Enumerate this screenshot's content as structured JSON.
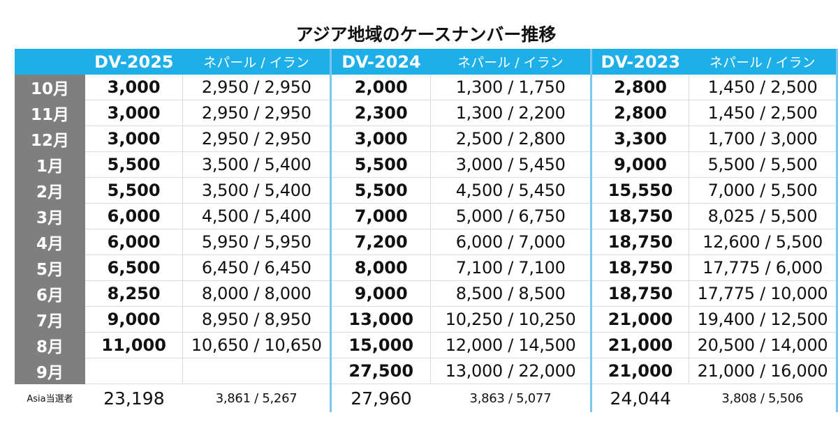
{
  "title": "アジア地域のケースナンバー推移",
  "headers": {
    "years": [
      "DV-2025",
      "DV-2024",
      "DV-2023"
    ],
    "sub": "ネパール / イラン"
  },
  "rows": [
    {
      "month": "10月",
      "v": [
        "3,000",
        "2,950 / 2,950",
        "2,000",
        "1,300 / 1,750",
        "2,800",
        "1,450 / 2,500"
      ]
    },
    {
      "month": "11月",
      "v": [
        "3,000",
        "2,950 / 2,950",
        "2,300",
        "1,300 / 2,200",
        "2,800",
        "1,450 / 2,500"
      ]
    },
    {
      "month": "12月",
      "v": [
        "3,000",
        "2,950 / 2,950",
        "3,000",
        "2,500 / 2,800",
        "3,300",
        "1,700 / 3,000"
      ]
    },
    {
      "month": "1月",
      "v": [
        "5,500",
        "3,500 / 5,400",
        "5,500",
        "3,000 / 5,450",
        "9,000",
        "5,500 / 5,500"
      ]
    },
    {
      "month": "2月",
      "v": [
        "5,500",
        "3,500 / 5,400",
        "5,500",
        "4,500 / 5,450",
        "15,550",
        "7,000 / 5,500"
      ]
    },
    {
      "month": "3月",
      "v": [
        "6,000",
        "4,500 / 5,400",
        "7,000",
        "5,000 / 6,750",
        "18,750",
        "8,025 / 5,500"
      ]
    },
    {
      "month": "4月",
      "v": [
        "6,000",
        "5,950 / 5,950",
        "7,200",
        "6,000 / 7,000",
        "18,750",
        "12,600 / 5,500"
      ]
    },
    {
      "month": "5月",
      "v": [
        "6,500",
        "6,450 / 6,450",
        "8,000",
        "7,100 / 7,100",
        "18,750",
        "17,775 / 6,000"
      ]
    },
    {
      "month": "6月",
      "v": [
        "8,250",
        "8,000 / 8,000",
        "9,000",
        "8,500 / 8,500",
        "18,750",
        "17,775 / 10,000"
      ]
    },
    {
      "month": "7月",
      "v": [
        "9,000",
        "8,950 / 8,950",
        "13,000",
        "10,250 / 10,250",
        "21,000",
        "19,400 / 12,500"
      ]
    },
    {
      "month": "8月",
      "v": [
        "11,000",
        "10,650 / 10,650",
        "15,000",
        "12,000 / 14,500",
        "21,000",
        "20,500 / 14,000"
      ]
    },
    {
      "month": "9月",
      "v": [
        "",
        "",
        "27,500",
        "13,000 / 22,000",
        "21,000",
        "21,000 / 16,000"
      ]
    }
  ],
  "total": {
    "label": "Asia当選者",
    "v": [
      "23,198",
      "3,861 / 5,267",
      "27,960",
      "3,863 / 5,077",
      "24,044",
      "3,808 / 5,506"
    ]
  }
}
